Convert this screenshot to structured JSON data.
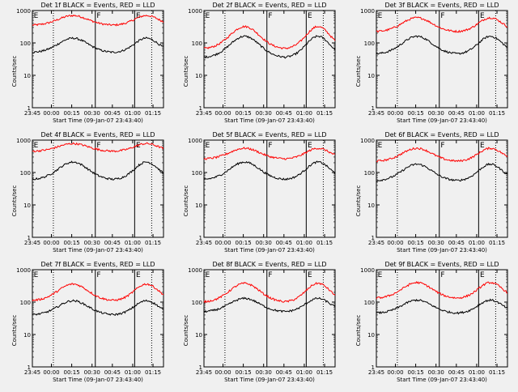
{
  "figure": {
    "xlabel": "Start Time (09-Jan-07 23:43:40)",
    "ylabel": "Counts/sec",
    "x_ticks": [
      "23:45",
      "00:00",
      "00:15",
      "00:30",
      "00:45",
      "01:00",
      "01:15"
    ],
    "y_ticks": [
      "1",
      "10",
      "100",
      "1000"
    ],
    "marker_labels": [
      "E",
      "F",
      "E"
    ]
  },
  "colors": {
    "events": "#000000",
    "lld": "#ff0000",
    "background": "#f0f0f0"
  },
  "chart_data": [
    {
      "type": "line",
      "title": "Det 1f BLACK = Events, RED = LLD",
      "ylim": [
        1,
        1000
      ],
      "yscale": "log",
      "events": {
        "min": 50,
        "max": 140
      },
      "lld": {
        "min": 350,
        "max": 700
      }
    },
    {
      "type": "line",
      "title": "Det 2f BLACK = Events, RED = LLD",
      "ylim": [
        1,
        1000
      ],
      "yscale": "log",
      "events": {
        "min": 35,
        "max": 160
      },
      "lld": {
        "min": 65,
        "max": 320
      }
    },
    {
      "type": "line",
      "title": "Det 3f BLACK = Events, RED = LLD",
      "ylim": [
        1,
        1000
      ],
      "yscale": "log",
      "events": {
        "min": 45,
        "max": 160
      },
      "lld": {
        "min": 220,
        "max": 600
      }
    },
    {
      "type": "line",
      "title": "Det 4f BLACK = Events, RED = LLD",
      "ylim": [
        1,
        1000
      ],
      "yscale": "log",
      "events": {
        "min": 60,
        "max": 210
      },
      "lld": {
        "min": 450,
        "max": 780
      }
    },
    {
      "type": "line",
      "title": "Det 5f BLACK = Events, RED = LLD",
      "ylim": [
        1,
        1000
      ],
      "yscale": "log",
      "events": {
        "min": 60,
        "max": 210
      },
      "lld": {
        "min": 260,
        "max": 560
      }
    },
    {
      "type": "line",
      "title": "Det 6f BLACK = Events, RED = LLD",
      "ylim": [
        1,
        1000
      ],
      "yscale": "log",
      "events": {
        "min": 55,
        "max": 180
      },
      "lld": {
        "min": 220,
        "max": 560
      }
    },
    {
      "type": "line",
      "title": "Det 7f BLACK = Events, RED = LLD",
      "ylim": [
        1,
        1000
      ],
      "yscale": "log",
      "events": {
        "min": 40,
        "max": 110
      },
      "lld": {
        "min": 110,
        "max": 360
      }
    },
    {
      "type": "line",
      "title": "Det 8f BLACK = Events, RED = LLD",
      "ylim": [
        1,
        1000
      ],
      "yscale": "log",
      "events": {
        "min": 50,
        "max": 130
      },
      "lld": {
        "min": 100,
        "max": 380
      }
    },
    {
      "type": "line",
      "title": "Det 9f BLACK = Events, RED = LLD",
      "ylim": [
        1,
        1000
      ],
      "yscale": "log",
      "events": {
        "min": 45,
        "max": 115
      },
      "lld": {
        "min": 130,
        "max": 400
      }
    }
  ]
}
